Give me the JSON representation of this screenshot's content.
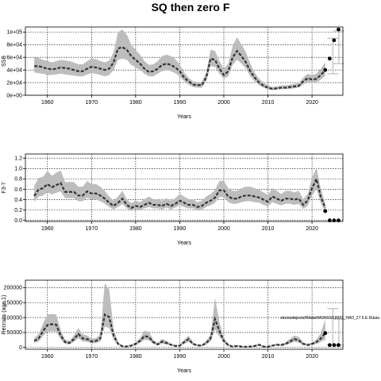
{
  "title": "SQ then zero F",
  "chart_data": [
    {
      "type": "line",
      "panel": "ssb",
      "ylabel": "SSB",
      "xlabel": "Years",
      "xlim": [
        1955,
        2027
      ],
      "ylim": [
        0,
        108000
      ],
      "xticks": [
        1960,
        1970,
        1980,
        1990,
        2000,
        2010,
        2020
      ],
      "xtick_labels": [
        "1960",
        "1970",
        "1980",
        "1990",
        "2000",
        "2010",
        "2020"
      ],
      "yticks": [
        0,
        20000,
        40000,
        60000,
        80000,
        100000
      ],
      "ytick_labels": [
        "0e+00",
        "2e+04",
        "4e+04",
        "6e+04",
        "8e+04",
        "1e+05"
      ],
      "grid": true,
      "years": [
        1957,
        1958,
        1959,
        1960,
        1961,
        1962,
        1963,
        1964,
        1965,
        1966,
        1967,
        1968,
        1969,
        1970,
        1971,
        1972,
        1973,
        1974,
        1975,
        1976,
        1977,
        1978,
        1979,
        1980,
        1981,
        1982,
        1983,
        1984,
        1985,
        1986,
        1987,
        1988,
        1989,
        1990,
        1991,
        1992,
        1993,
        1994,
        1995,
        1996,
        1997,
        1998,
        1999,
        2000,
        2001,
        2002,
        2003,
        2004,
        2005,
        2006,
        2007,
        2008,
        2009,
        2010,
        2011,
        2012,
        2013,
        2014,
        2015,
        2016,
        2017,
        2018,
        2019,
        2020,
        2021,
        2022,
        2023
      ],
      "median": [
        46000,
        46000,
        44000,
        42000,
        41000,
        42000,
        44000,
        43000,
        42000,
        40000,
        38000,
        38000,
        42000,
        45000,
        44000,
        42000,
        40000,
        42000,
        52000,
        74000,
        76000,
        72000,
        62000,
        56000,
        50000,
        42000,
        37000,
        38000,
        42000,
        48000,
        50000,
        48000,
        44000,
        38000,
        28000,
        22000,
        17000,
        16000,
        16000,
        28000,
        58000,
        56000,
        42000,
        32000,
        38000,
        60000,
        70000,
        62000,
        52000,
        38000,
        28000,
        20000,
        15000,
        12000,
        10000,
        11000,
        12000,
        12000,
        13000,
        14000,
        15000,
        22000,
        27000,
        25000,
        26000,
        32000,
        40000
      ],
      "lower": [
        36000,
        35000,
        34000,
        32000,
        32000,
        33000,
        34000,
        33000,
        32000,
        31000,
        30000,
        30000,
        33000,
        35000,
        34000,
        32000,
        30000,
        32000,
        40000,
        56000,
        58000,
        56000,
        48000,
        44000,
        40000,
        34000,
        30000,
        30000,
        34000,
        38000,
        40000,
        38000,
        35000,
        30000,
        22000,
        17000,
        13000,
        12000,
        12000,
        22000,
        46000,
        45000,
        34000,
        26000,
        30000,
        48000,
        56000,
        50000,
        42000,
        30000,
        22000,
        16000,
        12000,
        9500,
        8000,
        9000,
        9500,
        9500,
        10000,
        11000,
        12000,
        17000,
        21000,
        20000,
        20000,
        25000,
        31000
      ],
      "upper": [
        60000,
        59000,
        56000,
        54000,
        52000,
        54000,
        56000,
        55000,
        54000,
        52000,
        49000,
        49000,
        54000,
        58000,
        57000,
        54000,
        52000,
        55000,
        68000,
        100000,
        104000,
        96000,
        80000,
        72000,
        64000,
        54000,
        48000,
        49000,
        54000,
        62000,
        64000,
        62000,
        57000,
        49000,
        36000,
        28000,
        22000,
        21000,
        21000,
        36000,
        72000,
        70000,
        54000,
        42000,
        50000,
        78000,
        92000,
        80000,
        68000,
        50000,
        36000,
        26000,
        20000,
        15500,
        13000,
        14000,
        15500,
        15500,
        16500,
        18000,
        19000,
        28000,
        34000,
        32000,
        34000,
        42000,
        52000
      ],
      "projection_years": [
        2023,
        2024,
        2025,
        2026
      ],
      "projection_points": [
        40000,
        58000,
        87000,
        104000
      ],
      "error_bars": [
        {
          "year": 2024,
          "low": 34000,
          "high": 90000
        },
        {
          "year": 2025,
          "low": 50000,
          "high": 102000
        }
      ]
    },
    {
      "type": "line",
      "panel": "f",
      "ylabel": "F3-7",
      "xlabel": "Years",
      "xlim": [
        1955,
        2027
      ],
      "ylim": [
        -0.02,
        1.28
      ],
      "xticks": [
        1960,
        1970,
        1980,
        1990,
        2000,
        2010,
        2020
      ],
      "xtick_labels": [
        "1960",
        "1970",
        "1980",
        "1990",
        "2000",
        "2010",
        "2020"
      ],
      "yticks": [
        0.0,
        0.2,
        0.4,
        0.6,
        0.8,
        1.0,
        1.2
      ],
      "ytick_labels": [
        "0.0",
        "0.2",
        "0.4",
        "0.6",
        "0.8",
        "1.0",
        "1.2"
      ],
      "grid": true,
      "years": [
        1957,
        1958,
        1959,
        1960,
        1961,
        1962,
        1963,
        1964,
        1965,
        1966,
        1967,
        1968,
        1969,
        1970,
        1971,
        1972,
        1973,
        1974,
        1975,
        1976,
        1977,
        1978,
        1979,
        1980,
        1981,
        1982,
        1983,
        1984,
        1985,
        1986,
        1987,
        1988,
        1989,
        1990,
        1991,
        1992,
        1993,
        1994,
        1995,
        1996,
        1997,
        1998,
        1999,
        2000,
        2001,
        2002,
        2003,
        2004,
        2005,
        2006,
        2007,
        2008,
        2009,
        2010,
        2011,
        2012,
        2013,
        2014,
        2015,
        2016,
        2017,
        2018,
        2019,
        2020,
        2021,
        2022,
        2023
      ],
      "median": [
        0.47,
        0.6,
        0.62,
        0.7,
        0.64,
        0.68,
        0.72,
        0.55,
        0.55,
        0.55,
        0.48,
        0.48,
        0.56,
        0.52,
        0.52,
        0.48,
        0.42,
        0.34,
        0.28,
        0.34,
        0.42,
        0.3,
        0.24,
        0.28,
        0.26,
        0.3,
        0.34,
        0.3,
        0.3,
        0.28,
        0.32,
        0.28,
        0.32,
        0.38,
        0.34,
        0.3,
        0.3,
        0.26,
        0.28,
        0.34,
        0.38,
        0.44,
        0.58,
        0.58,
        0.46,
        0.42,
        0.42,
        0.46,
        0.48,
        0.48,
        0.46,
        0.44,
        0.4,
        0.36,
        0.46,
        0.42,
        0.38,
        0.42,
        0.42,
        0.4,
        0.42,
        0.3,
        0.38,
        0.62,
        0.8,
        0.45,
        0.24
      ],
      "lower": [
        0.36,
        0.46,
        0.48,
        0.54,
        0.5,
        0.53,
        0.56,
        0.43,
        0.43,
        0.43,
        0.37,
        0.37,
        0.44,
        0.4,
        0.4,
        0.37,
        0.32,
        0.26,
        0.21,
        0.26,
        0.32,
        0.23,
        0.18,
        0.21,
        0.2,
        0.23,
        0.26,
        0.23,
        0.23,
        0.21,
        0.25,
        0.21,
        0.25,
        0.29,
        0.26,
        0.23,
        0.23,
        0.2,
        0.21,
        0.26,
        0.29,
        0.34,
        0.45,
        0.45,
        0.35,
        0.32,
        0.32,
        0.35,
        0.37,
        0.37,
        0.35,
        0.34,
        0.3,
        0.27,
        0.35,
        0.32,
        0.29,
        0.32,
        0.32,
        0.3,
        0.32,
        0.22,
        0.28,
        0.47,
        0.61,
        0.33,
        0.16
      ],
      "upper": [
        0.66,
        0.82,
        0.84,
        0.96,
        0.86,
        0.92,
        0.96,
        0.74,
        0.74,
        0.74,
        0.65,
        0.65,
        0.76,
        0.7,
        0.7,
        0.65,
        0.57,
        0.46,
        0.38,
        0.46,
        0.57,
        0.41,
        0.33,
        0.38,
        0.35,
        0.41,
        0.46,
        0.41,
        0.41,
        0.38,
        0.43,
        0.38,
        0.43,
        0.51,
        0.46,
        0.41,
        0.41,
        0.35,
        0.38,
        0.46,
        0.51,
        0.59,
        0.76,
        0.76,
        0.62,
        0.57,
        0.57,
        0.62,
        0.65,
        0.65,
        0.62,
        0.59,
        0.54,
        0.49,
        0.62,
        0.57,
        0.51,
        0.57,
        0.57,
        0.54,
        0.57,
        0.41,
        0.51,
        0.82,
        1.02,
        0.61,
        0.33
      ],
      "projection_years": [
        2023,
        2024,
        2025,
        2026
      ],
      "projection_points": [
        0.18,
        0.0,
        0.0,
        0.0
      ]
    },
    {
      "type": "line",
      "panel": "recruitment",
      "ylabel": "Recruits (age 1)",
      "xlabel": "Years",
      "xlim": [
        1955,
        2027
      ],
      "ylim": [
        -6000,
        225000
      ],
      "xticks": [
        1960,
        1970,
        1980,
        1990,
        2000,
        2010,
        2020
      ],
      "xtick_labels": [
        "1960",
        "1970",
        "1980",
        "1990",
        "2000",
        "2010",
        "2020"
      ],
      "yticks": [
        0,
        50000,
        100000,
        150000,
        200000
      ],
      "ytick_labels": [
        "0",
        "50000",
        "100000",
        "150000",
        "200000"
      ],
      "grid": true,
      "annotation": "stocksobjects/Rdata/WGNSSK2023_HAD_27.5.E.Rdata",
      "years": [
        1957,
        1958,
        1959,
        1960,
        1961,
        1962,
        1963,
        1964,
        1965,
        1966,
        1967,
        1968,
        1969,
        1970,
        1971,
        1972,
        1973,
        1974,
        1975,
        1976,
        1977,
        1978,
        1979,
        1980,
        1981,
        1982,
        1983,
        1984,
        1985,
        1986,
        1987,
        1988,
        1989,
        1990,
        1991,
        1992,
        1993,
        1994,
        1995,
        1996,
        1997,
        1998,
        1999,
        2000,
        2001,
        2002,
        2003,
        2004,
        2005,
        2006,
        2007,
        2008,
        2009,
        2010,
        2011,
        2012,
        2013,
        2014,
        2015,
        2016,
        2017,
        2018,
        2019,
        2020,
        2021,
        2022,
        2023
      ],
      "median": [
        22000,
        30000,
        55000,
        75000,
        78000,
        76000,
        40000,
        18000,
        15000,
        28000,
        45000,
        30000,
        28000,
        20000,
        22000,
        30000,
        110000,
        102000,
        40000,
        12000,
        4000,
        3000,
        6000,
        12000,
        22000,
        38000,
        35000,
        18000,
        10000,
        20000,
        15000,
        9000,
        5000,
        6000,
        18000,
        28000,
        12000,
        7000,
        6000,
        15000,
        30000,
        95000,
        55000,
        22000,
        8000,
        3000,
        5000,
        3000,
        2000,
        3000,
        5000,
        9000,
        3000,
        2000,
        6000,
        9000,
        8000,
        12000,
        20000,
        28000,
        24000,
        12000,
        8000,
        12000,
        18000,
        30000,
        48000
      ],
      "lower": [
        15000,
        20000,
        38000,
        52000,
        54000,
        52000,
        27000,
        12000,
        10000,
        19000,
        31000,
        20000,
        19000,
        13000,
        15000,
        20000,
        70000,
        65000,
        26000,
        8000,
        2500,
        2000,
        4000,
        8000,
        15000,
        26000,
        24000,
        12000,
        7000,
        13000,
        10000,
        6000,
        3500,
        4000,
        12000,
        19000,
        8000,
        4500,
        4000,
        10000,
        20000,
        60000,
        36000,
        15000,
        5000,
        2000,
        3500,
        2000,
        1300,
        2000,
        3500,
        6000,
        2000,
        1300,
        4000,
        6000,
        5500,
        8000,
        13000,
        19000,
        16000,
        8000,
        5000,
        8000,
        12000,
        19000,
        26000
      ],
      "upper": [
        32000,
        44000,
        80000,
        110000,
        112000,
        110000,
        58000,
        26000,
        22000,
        40000,
        65000,
        44000,
        40000,
        29000,
        32000,
        44000,
        215000,
        195000,
        62000,
        18000,
        6000,
        4500,
        9000,
        18000,
        32000,
        56000,
        52000,
        26000,
        15000,
        29000,
        22000,
        13000,
        7500,
        9000,
        26000,
        40000,
        17000,
        10000,
        9000,
        22000,
        44000,
        165000,
        86000,
        32000,
        12000,
        4500,
        7500,
        4500,
        3000,
        4500,
        7500,
        13000,
        4500,
        3000,
        9000,
        13000,
        12000,
        17000,
        29000,
        40000,
        35000,
        17000,
        12000,
        17000,
        27000,
        48000,
        95000
      ],
      "projection_years": [
        2023,
        2024,
        2025,
        2026
      ],
      "projection_points": [
        48000,
        8000,
        8000,
        8000
      ],
      "error_bars": [
        {
          "year": 2024,
          "low": 8000,
          "high": 130000
        },
        {
          "year": 2025,
          "low": 8000,
          "high": 95000
        }
      ]
    }
  ]
}
